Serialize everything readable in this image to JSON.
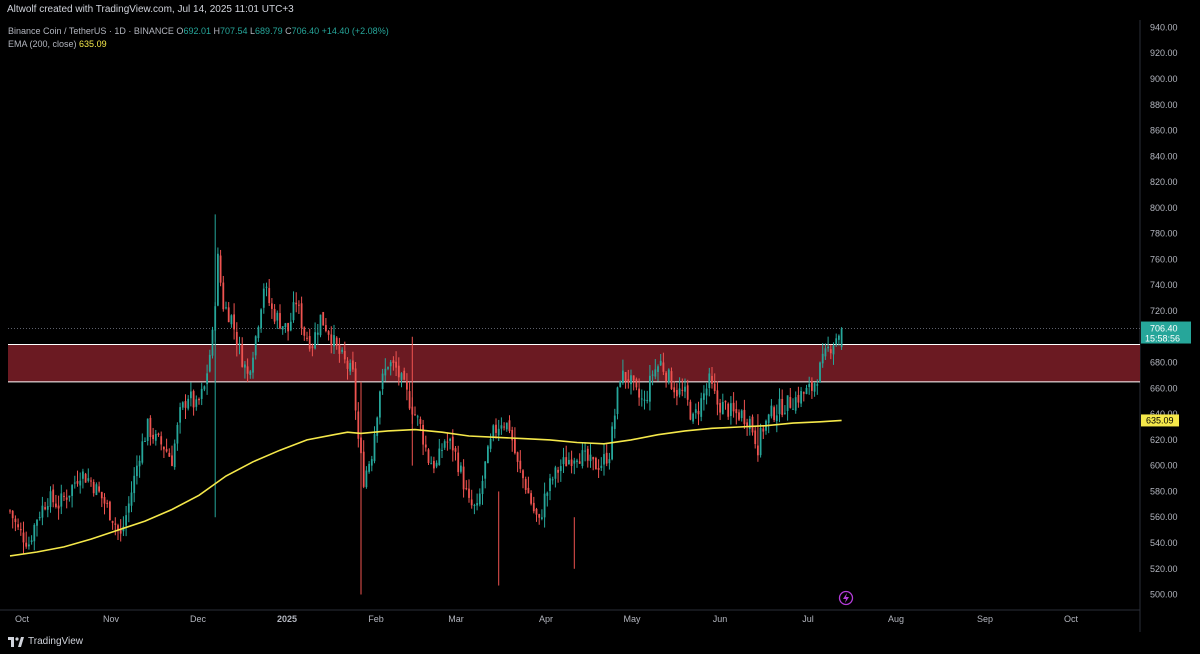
{
  "header": {
    "caption": "Altwolf created with TradingView.com, Jul 14, 2025 11:01 UTC+3"
  },
  "legend": {
    "symbol": "Binance Coin / TetherUS · 1D · BINANCE",
    "o_label": "O",
    "o_value": "692.01",
    "h_label": "H",
    "h_value": "707.54",
    "l_label": "L",
    "l_value": "689.79",
    "c_label": "C",
    "c_value": "706.40",
    "change": "+14.40 (+2.08%)",
    "ema_label": "EMA (200, close)",
    "ema_value": "635.09"
  },
  "footer": {
    "brand": "TradingView"
  },
  "colors": {
    "up": "#26a69a",
    "down": "#ef5350",
    "ema": "#f5e84a",
    "zone": "#6b1a22",
    "zone_line": "#ffffff"
  },
  "chart_data": {
    "type": "candlestick",
    "ylim": [
      495,
      945
    ],
    "y_ticks": [
      "940.00",
      "920.00",
      "900.00",
      "880.00",
      "860.00",
      "840.00",
      "820.00",
      "800.00",
      "780.00",
      "760.00",
      "740.00",
      "720.00",
      "700.00",
      "680.00",
      "660.00",
      "640.00",
      "620.00",
      "600.00",
      "580.00",
      "560.00",
      "540.00",
      "520.00",
      "500.00"
    ],
    "x_ticks": [
      "Oct",
      "Nov",
      "Dec",
      "2025",
      "Feb",
      "Mar",
      "Apr",
      "May",
      "Jun",
      "Jul",
      "Aug",
      "Sep",
      "Oct"
    ],
    "zone": {
      "low": 665,
      "high": 694
    },
    "last_price": {
      "price": 706.4,
      "label": "706.40",
      "countdown": "15:58:56"
    },
    "ema_badge": {
      "value": 635.09,
      "label": "635.09"
    },
    "price_path": [
      [
        0,
        565
      ],
      [
        3,
        550
      ],
      [
        7,
        540
      ],
      [
        10,
        560
      ],
      [
        14,
        575
      ],
      [
        18,
        570
      ],
      [
        22,
        580
      ],
      [
        26,
        595
      ],
      [
        30,
        588
      ],
      [
        34,
        575
      ],
      [
        38,
        560
      ],
      [
        41,
        545
      ],
      [
        44,
        570
      ],
      [
        48,
        610
      ],
      [
        51,
        630
      ],
      [
        54,
        620
      ],
      [
        57,
        615
      ],
      [
        60,
        605
      ],
      [
        63,
        640
      ],
      [
        66,
        655
      ],
      [
        69,
        645
      ],
      [
        72,
        660
      ],
      [
        75,
        700
      ],
      [
        77,
        760
      ],
      [
        79,
        725
      ],
      [
        82,
        715
      ],
      [
        85,
        690
      ],
      [
        88,
        670
      ],
      [
        91,
        700
      ],
      [
        94,
        740
      ],
      [
        97,
        720
      ],
      [
        100,
        712
      ],
      [
        103,
        705
      ],
      [
        106,
        728
      ],
      [
        109,
        703
      ],
      [
        112,
        695
      ],
      [
        115,
        715
      ],
      [
        118,
        705
      ],
      [
        121,
        690
      ],
      [
        124,
        680
      ],
      [
        127,
        670
      ],
      [
        129,
        620
      ],
      [
        131,
        590
      ],
      [
        134,
        610
      ],
      [
        137,
        660
      ],
      [
        140,
        680
      ],
      [
        143,
        675
      ],
      [
        146,
        660
      ],
      [
        149,
        645
      ],
      [
        152,
        630
      ],
      [
        155,
        605
      ],
      [
        158,
        600
      ],
      [
        161,
        620
      ],
      [
        164,
        615
      ],
      [
        167,
        595
      ],
      [
        170,
        570
      ],
      [
        173,
        565
      ],
      [
        176,
        600
      ],
      [
        179,
        625
      ],
      [
        182,
        635
      ],
      [
        185,
        630
      ],
      [
        188,
        600
      ],
      [
        191,
        585
      ],
      [
        194,
        565
      ],
      [
        196,
        555
      ],
      [
        198,
        575
      ],
      [
        201,
        590
      ],
      [
        204,
        600
      ],
      [
        207,
        605
      ],
      [
        210,
        610
      ],
      [
        213,
        605
      ],
      [
        216,
        600
      ],
      [
        219,
        602
      ],
      [
        222,
        610
      ],
      [
        224,
        640
      ],
      [
        226,
        670
      ],
      [
        229,
        668
      ],
      [
        232,
        655
      ],
      [
        235,
        648
      ],
      [
        238,
        672
      ],
      [
        241,
        680
      ],
      [
        244,
        668
      ],
      [
        247,
        658
      ],
      [
        250,
        655
      ],
      [
        253,
        635
      ],
      [
        256,
        650
      ],
      [
        259,
        665
      ],
      [
        262,
        648
      ],
      [
        265,
        645
      ],
      [
        268,
        640
      ],
      [
        271,
        640
      ],
      [
        274,
        635
      ],
      [
        277,
        615
      ],
      [
        279,
        630
      ],
      [
        282,
        640
      ],
      [
        285,
        645
      ],
      [
        288,
        648
      ],
      [
        291,
        652
      ],
      [
        294,
        656
      ],
      [
        297,
        660
      ],
      [
        300,
        675
      ],
      [
        303,
        690
      ],
      [
        306,
        700
      ],
      [
        308,
        706.4
      ]
    ],
    "ema_series": [
      [
        0,
        530
      ],
      [
        10,
        533
      ],
      [
        20,
        537
      ],
      [
        30,
        543
      ],
      [
        40,
        550
      ],
      [
        50,
        557
      ],
      [
        60,
        566
      ],
      [
        70,
        577
      ],
      [
        80,
        592
      ],
      [
        90,
        603
      ],
      [
        100,
        612
      ],
      [
        110,
        620
      ],
      [
        120,
        624
      ],
      [
        125,
        626
      ],
      [
        130,
        625
      ],
      [
        140,
        627
      ],
      [
        150,
        628
      ],
      [
        160,
        626
      ],
      [
        170,
        623
      ],
      [
        180,
        622
      ],
      [
        190,
        621
      ],
      [
        200,
        620
      ],
      [
        210,
        618
      ],
      [
        220,
        617
      ],
      [
        230,
        620
      ],
      [
        240,
        624
      ],
      [
        250,
        627
      ],
      [
        260,
        629
      ],
      [
        270,
        630
      ],
      [
        280,
        631
      ],
      [
        290,
        633
      ],
      [
        300,
        634
      ],
      [
        308,
        635.09
      ]
    ]
  }
}
